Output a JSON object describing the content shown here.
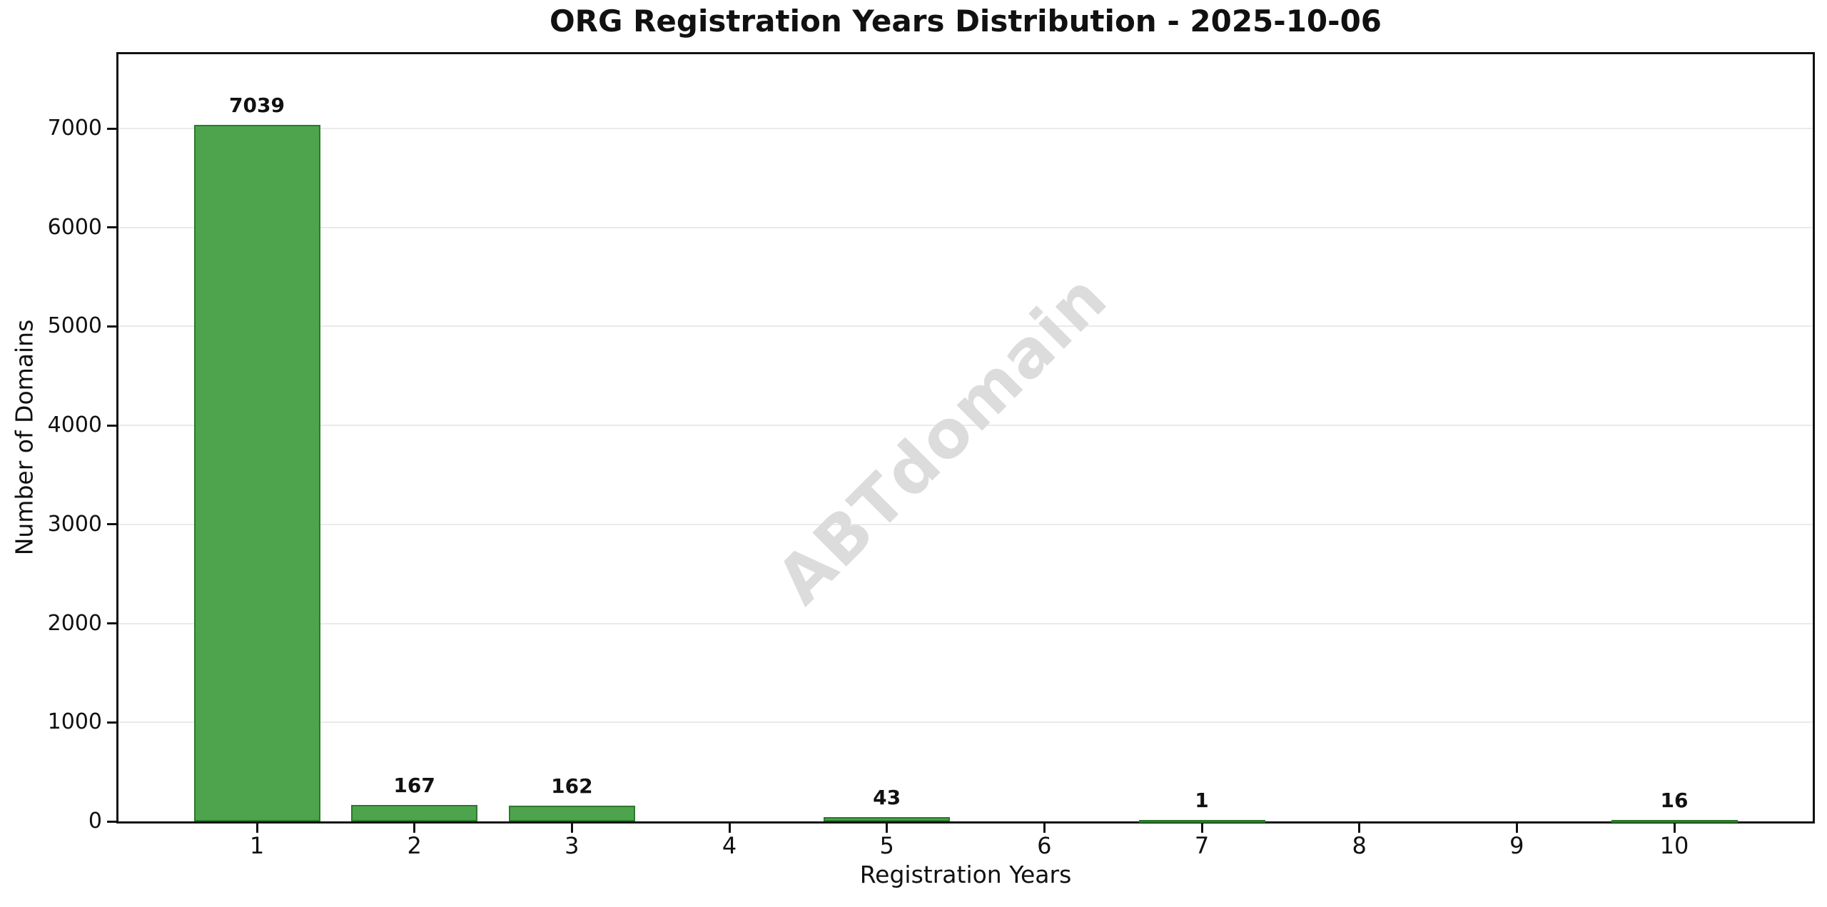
{
  "chart_data": {
    "type": "bar",
    "title": "ORG Registration Years Distribution - 2025-10-06",
    "xlabel": "Registration Years",
    "ylabel": "Number of Domains",
    "categories": [
      "1",
      "2",
      "3",
      "4",
      "5",
      "6",
      "7",
      "8",
      "9",
      "10"
    ],
    "values": [
      7039,
      167,
      162,
      0,
      43,
      0,
      1,
      0,
      0,
      16
    ],
    "bar_labels": [
      "7039",
      "167",
      "162",
      "",
      "43",
      "",
      "1",
      "",
      "",
      "16"
    ],
    "ylim": [
      0,
      7750
    ],
    "yticks": [
      0,
      1000,
      2000,
      3000,
      4000,
      5000,
      6000,
      7000
    ],
    "grid": "horizontal-only",
    "legend": "none",
    "watermark": "ABTdomain",
    "colors": {
      "bar_fill": "#4DA44D",
      "bar_edge": "#2B7A2B",
      "gridline": "#EAEAEA",
      "axis": "#111111",
      "watermark": "#DCDCDC"
    }
  }
}
